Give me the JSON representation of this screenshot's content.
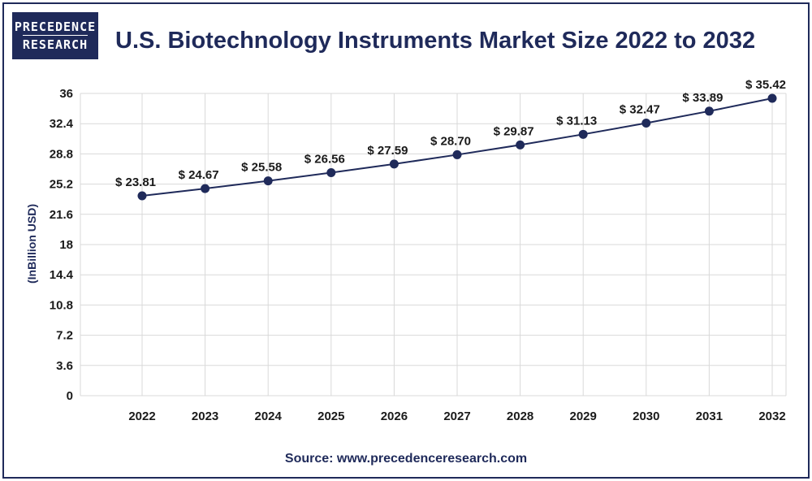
{
  "brand": {
    "line1": "PRECEDENCE",
    "line2": "RESEARCH"
  },
  "title": "U.S. Biotechnology Instruments Market Size 2022 to 2032",
  "source": "Source: www.precedenceresearch.com",
  "colors": {
    "navy": "#1f2a5a",
    "grid": "#d9d9d9"
  },
  "chart_data": {
    "type": "line",
    "title": "U.S. Biotechnology Instruments Market Size 2022 to 2032",
    "xlabel": "",
    "ylabel": "(InBillion USD)",
    "categories": [
      "2022",
      "2023",
      "2024",
      "2025",
      "2026",
      "2027",
      "2028",
      "2029",
      "2030",
      "2031",
      "2032"
    ],
    "series": [
      {
        "values": [
          23.81,
          24.67,
          25.58,
          26.56,
          27.59,
          28.7,
          29.87,
          31.13,
          32.47,
          33.89,
          35.42
        ]
      }
    ],
    "data_labels": [
      "$ 23.81",
      "$ 24.67",
      "$ 25.58",
      "$ 26.56",
      "$ 27.59",
      "$ 28.70",
      "$ 29.87",
      "$ 31.13",
      "$ 32.47",
      "$ 33.89",
      "$ 35.42"
    ],
    "ylim": [
      0,
      36
    ],
    "yticks": [
      "0",
      "3.6",
      "7.2",
      "10.8",
      "14.4",
      "18",
      "21.6",
      "25.2",
      "28.8",
      "32.4",
      "36"
    ],
    "grid": true,
    "legend": "none"
  }
}
